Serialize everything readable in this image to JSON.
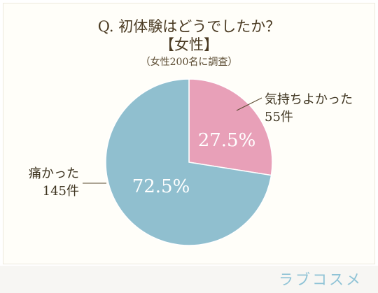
{
  "title": {
    "main": "Q. 初体験はどうでしたか？",
    "sub": "【女性】",
    "note": "（女性200名に調査）"
  },
  "chart_data": {
    "type": "pie",
    "title": "Q. 初体験はどうでしたか？【女性】",
    "subtitle": "（女性200名に調査）",
    "categories": [
      "気持ちよかった",
      "痛かった"
    ],
    "values": [
      55,
      145
    ],
    "percent_labels": [
      "27.5%",
      "72.5%"
    ],
    "count_labels": [
      "55件",
      "145件"
    ],
    "colors": [
      "#e8a0b8",
      "#90bfcf"
    ],
    "start_angle_deg": 0,
    "direction": "clockwise"
  },
  "brand": {
    "name": "ラブコスメ"
  }
}
